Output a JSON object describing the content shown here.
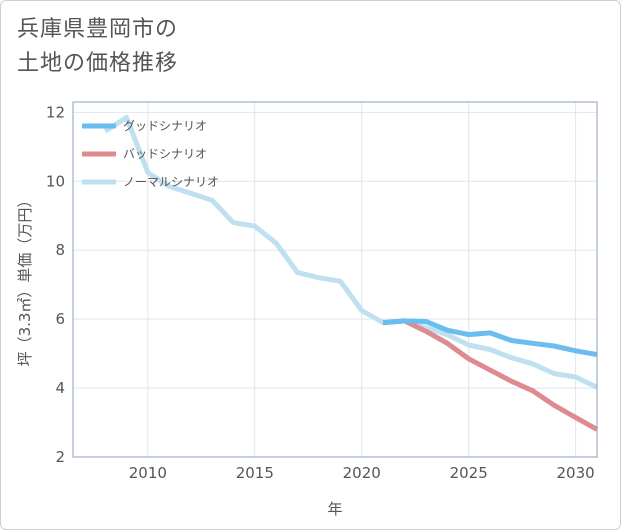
{
  "title": {
    "line1": "兵庫県豊岡市の",
    "line2": "土地の価格推移"
  },
  "chart_data": {
    "type": "line",
    "title": "兵庫県豊岡市の土地の価格推移",
    "xlabel": "年",
    "ylabel": "坪（3.3㎡）単価（万円）",
    "xlim": [
      2006.5,
      2031
    ],
    "ylim": [
      2,
      12.3
    ],
    "xticks": [
      2010,
      2015,
      2020,
      2025,
      2030
    ],
    "yticks": [
      2,
      4,
      6,
      8,
      10,
      12
    ],
    "grid": true,
    "legend_position": "top-left",
    "series": [
      {
        "name": "グッドシナリオ",
        "color": "#6bbcef",
        "x": [
          2021,
          2022,
          2023,
          2024,
          2025,
          2026,
          2027,
          2028,
          2029,
          2030,
          2031
        ],
        "y": [
          5.9,
          5.95,
          5.93,
          5.68,
          5.55,
          5.6,
          5.38,
          5.3,
          5.22,
          5.08,
          4.97
        ]
      },
      {
        "name": "バッドシナリオ",
        "color": "#dd8b90",
        "x": [
          2021,
          2022,
          2023,
          2024,
          2025,
          2026,
          2027,
          2028,
          2029,
          2030,
          2031
        ],
        "y": [
          5.9,
          5.95,
          5.65,
          5.3,
          4.85,
          4.52,
          4.2,
          3.92,
          3.5,
          3.15,
          2.8
        ]
      },
      {
        "name": "ノーマルシナリオ",
        "color": "#bfe0ee",
        "x": [
          2008,
          2009,
          2010,
          2011,
          2012,
          2013,
          2014,
          2015,
          2016,
          2017,
          2018,
          2019,
          2020,
          2021,
          2022,
          2023,
          2024,
          2025,
          2026,
          2027,
          2028,
          2029,
          2030,
          2031
        ],
        "y": [
          11.45,
          11.85,
          10.25,
          9.85,
          9.65,
          9.45,
          8.8,
          8.7,
          8.2,
          7.35,
          7.2,
          7.1,
          6.25,
          5.9,
          5.95,
          5.75,
          5.55,
          5.25,
          5.12,
          4.88,
          4.7,
          4.42,
          4.32,
          4.02
        ]
      }
    ]
  }
}
